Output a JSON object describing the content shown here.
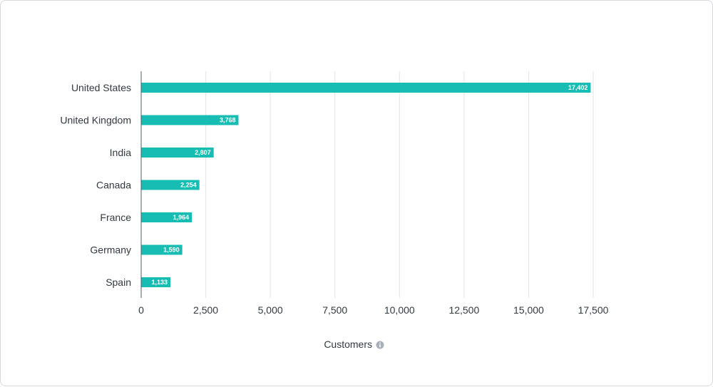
{
  "chart_data": {
    "type": "bar",
    "orientation": "horizontal",
    "categories": [
      "United States",
      "United Kingdom",
      "India",
      "Canada",
      "France",
      "Germany",
      "Spain"
    ],
    "values": [
      17402,
      3768,
      2807,
      2254,
      1964,
      1590,
      1133
    ],
    "data_labels": [
      "17,402",
      "3,768",
      "2,807",
      "2,254",
      "1,964",
      "1,590",
      "1,133"
    ],
    "xlabel": "Customers",
    "xlim": [
      0,
      17500
    ],
    "xticks": [
      0,
      2500,
      5000,
      7500,
      10000,
      12500,
      15000,
      17500
    ],
    "xtick_labels": [
      "0",
      "2,500",
      "5,000",
      "7,500",
      "10,000",
      "12,500",
      "15,000",
      "17,500"
    ],
    "grid": true,
    "bar_color": "#17bdb3",
    "info_icon": "info-icon"
  }
}
